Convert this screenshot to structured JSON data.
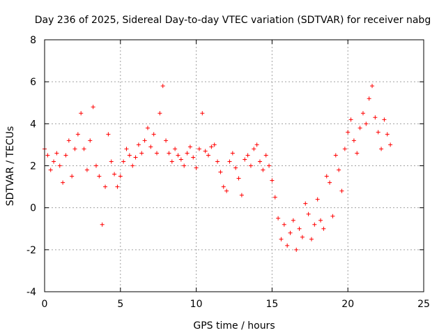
{
  "chart_data": {
    "type": "scatter",
    "title": "Day 236 of 2025, Sidereal Day-to-day VTEC variation (SDTVAR) for receiver nabg",
    "xlabel": "GPS time / hours",
    "ylabel": "SDTVAR / TECUs",
    "xlim": [
      0,
      25
    ],
    "ylim": [
      -4,
      8
    ],
    "xticks": [
      0,
      5,
      10,
      15,
      20,
      25
    ],
    "yticks": [
      -4,
      -2,
      0,
      2,
      4,
      6,
      8
    ],
    "grid": true,
    "marker": "+",
    "color": "#ff0000",
    "series": [
      {
        "name": "SDTVAR",
        "x": [
          0.0,
          0.2,
          0.4,
          0.6,
          0.8,
          1.0,
          1.2,
          1.4,
          1.6,
          1.8,
          2.0,
          2.2,
          2.4,
          2.6,
          2.8,
          3.0,
          3.2,
          3.4,
          3.6,
          3.8,
          4.0,
          4.2,
          4.4,
          4.6,
          4.8,
          5.0,
          5.2,
          5.4,
          5.6,
          5.8,
          6.0,
          6.2,
          6.4,
          6.6,
          6.8,
          7.0,
          7.2,
          7.4,
          7.6,
          7.8,
          8.0,
          8.2,
          8.4,
          8.6,
          8.8,
          9.0,
          9.2,
          9.4,
          9.6,
          9.8,
          10.0,
          10.2,
          10.4,
          10.6,
          10.8,
          11.0,
          11.2,
          11.4,
          11.6,
          11.8,
          12.0,
          12.2,
          12.4,
          12.6,
          12.8,
          13.0,
          13.2,
          13.4,
          13.6,
          13.8,
          14.0,
          14.2,
          14.4,
          14.6,
          14.8,
          15.0,
          15.2,
          15.4,
          15.6,
          15.8,
          16.0,
          16.2,
          16.4,
          16.6,
          16.8,
          17.0,
          17.2,
          17.4,
          17.6,
          17.8,
          18.0,
          18.2,
          18.4,
          18.6,
          18.8,
          19.0,
          19.2,
          19.4,
          19.6,
          19.8,
          20.0,
          20.2,
          20.4,
          20.6,
          20.8,
          21.0,
          21.2,
          21.4,
          21.6,
          21.8,
          22.0,
          22.2,
          22.4,
          22.6,
          22.8
        ],
        "y": [
          2.8,
          2.5,
          1.8,
          2.2,
          2.6,
          2.0,
          1.2,
          2.5,
          3.2,
          1.5,
          2.8,
          3.5,
          4.5,
          2.8,
          1.8,
          3.2,
          4.8,
          2.0,
          1.5,
          -0.8,
          1.0,
          3.5,
          2.2,
          1.6,
          1.0,
          1.5,
          2.2,
          2.8,
          2.5,
          2.0,
          2.4,
          3.0,
          2.6,
          3.2,
          3.8,
          2.9,
          3.5,
          2.6,
          4.5,
          5.8,
          3.2,
          2.6,
          2.2,
          2.8,
          2.5,
          2.3,
          2.0,
          2.6,
          2.9,
          2.4,
          1.9,
          2.8,
          4.5,
          2.7,
          2.5,
          2.9,
          3.0,
          2.2,
          1.7,
          1.0,
          0.8,
          2.2,
          2.6,
          1.9,
          1.4,
          0.6,
          2.3,
          2.5,
          2.0,
          2.8,
          3.0,
          2.2,
          1.8,
          2.5,
          2.0,
          1.3,
          0.5,
          -0.5,
          -1.5,
          -0.8,
          -1.8,
          -1.2,
          -0.6,
          -2.0,
          -1.0,
          -1.4,
          0.2,
          -0.3,
          -1.5,
          -0.8,
          0.4,
          -0.6,
          -1.0,
          1.5,
          1.2,
          -0.4,
          2.5,
          1.8,
          0.8,
          2.8,
          3.6,
          4.2,
          3.2,
          2.6,
          3.8,
          4.5,
          4.0,
          5.2,
          5.8,
          4.3,
          3.6,
          2.8,
          4.2,
          3.5,
          3.0
        ]
      }
    ]
  }
}
